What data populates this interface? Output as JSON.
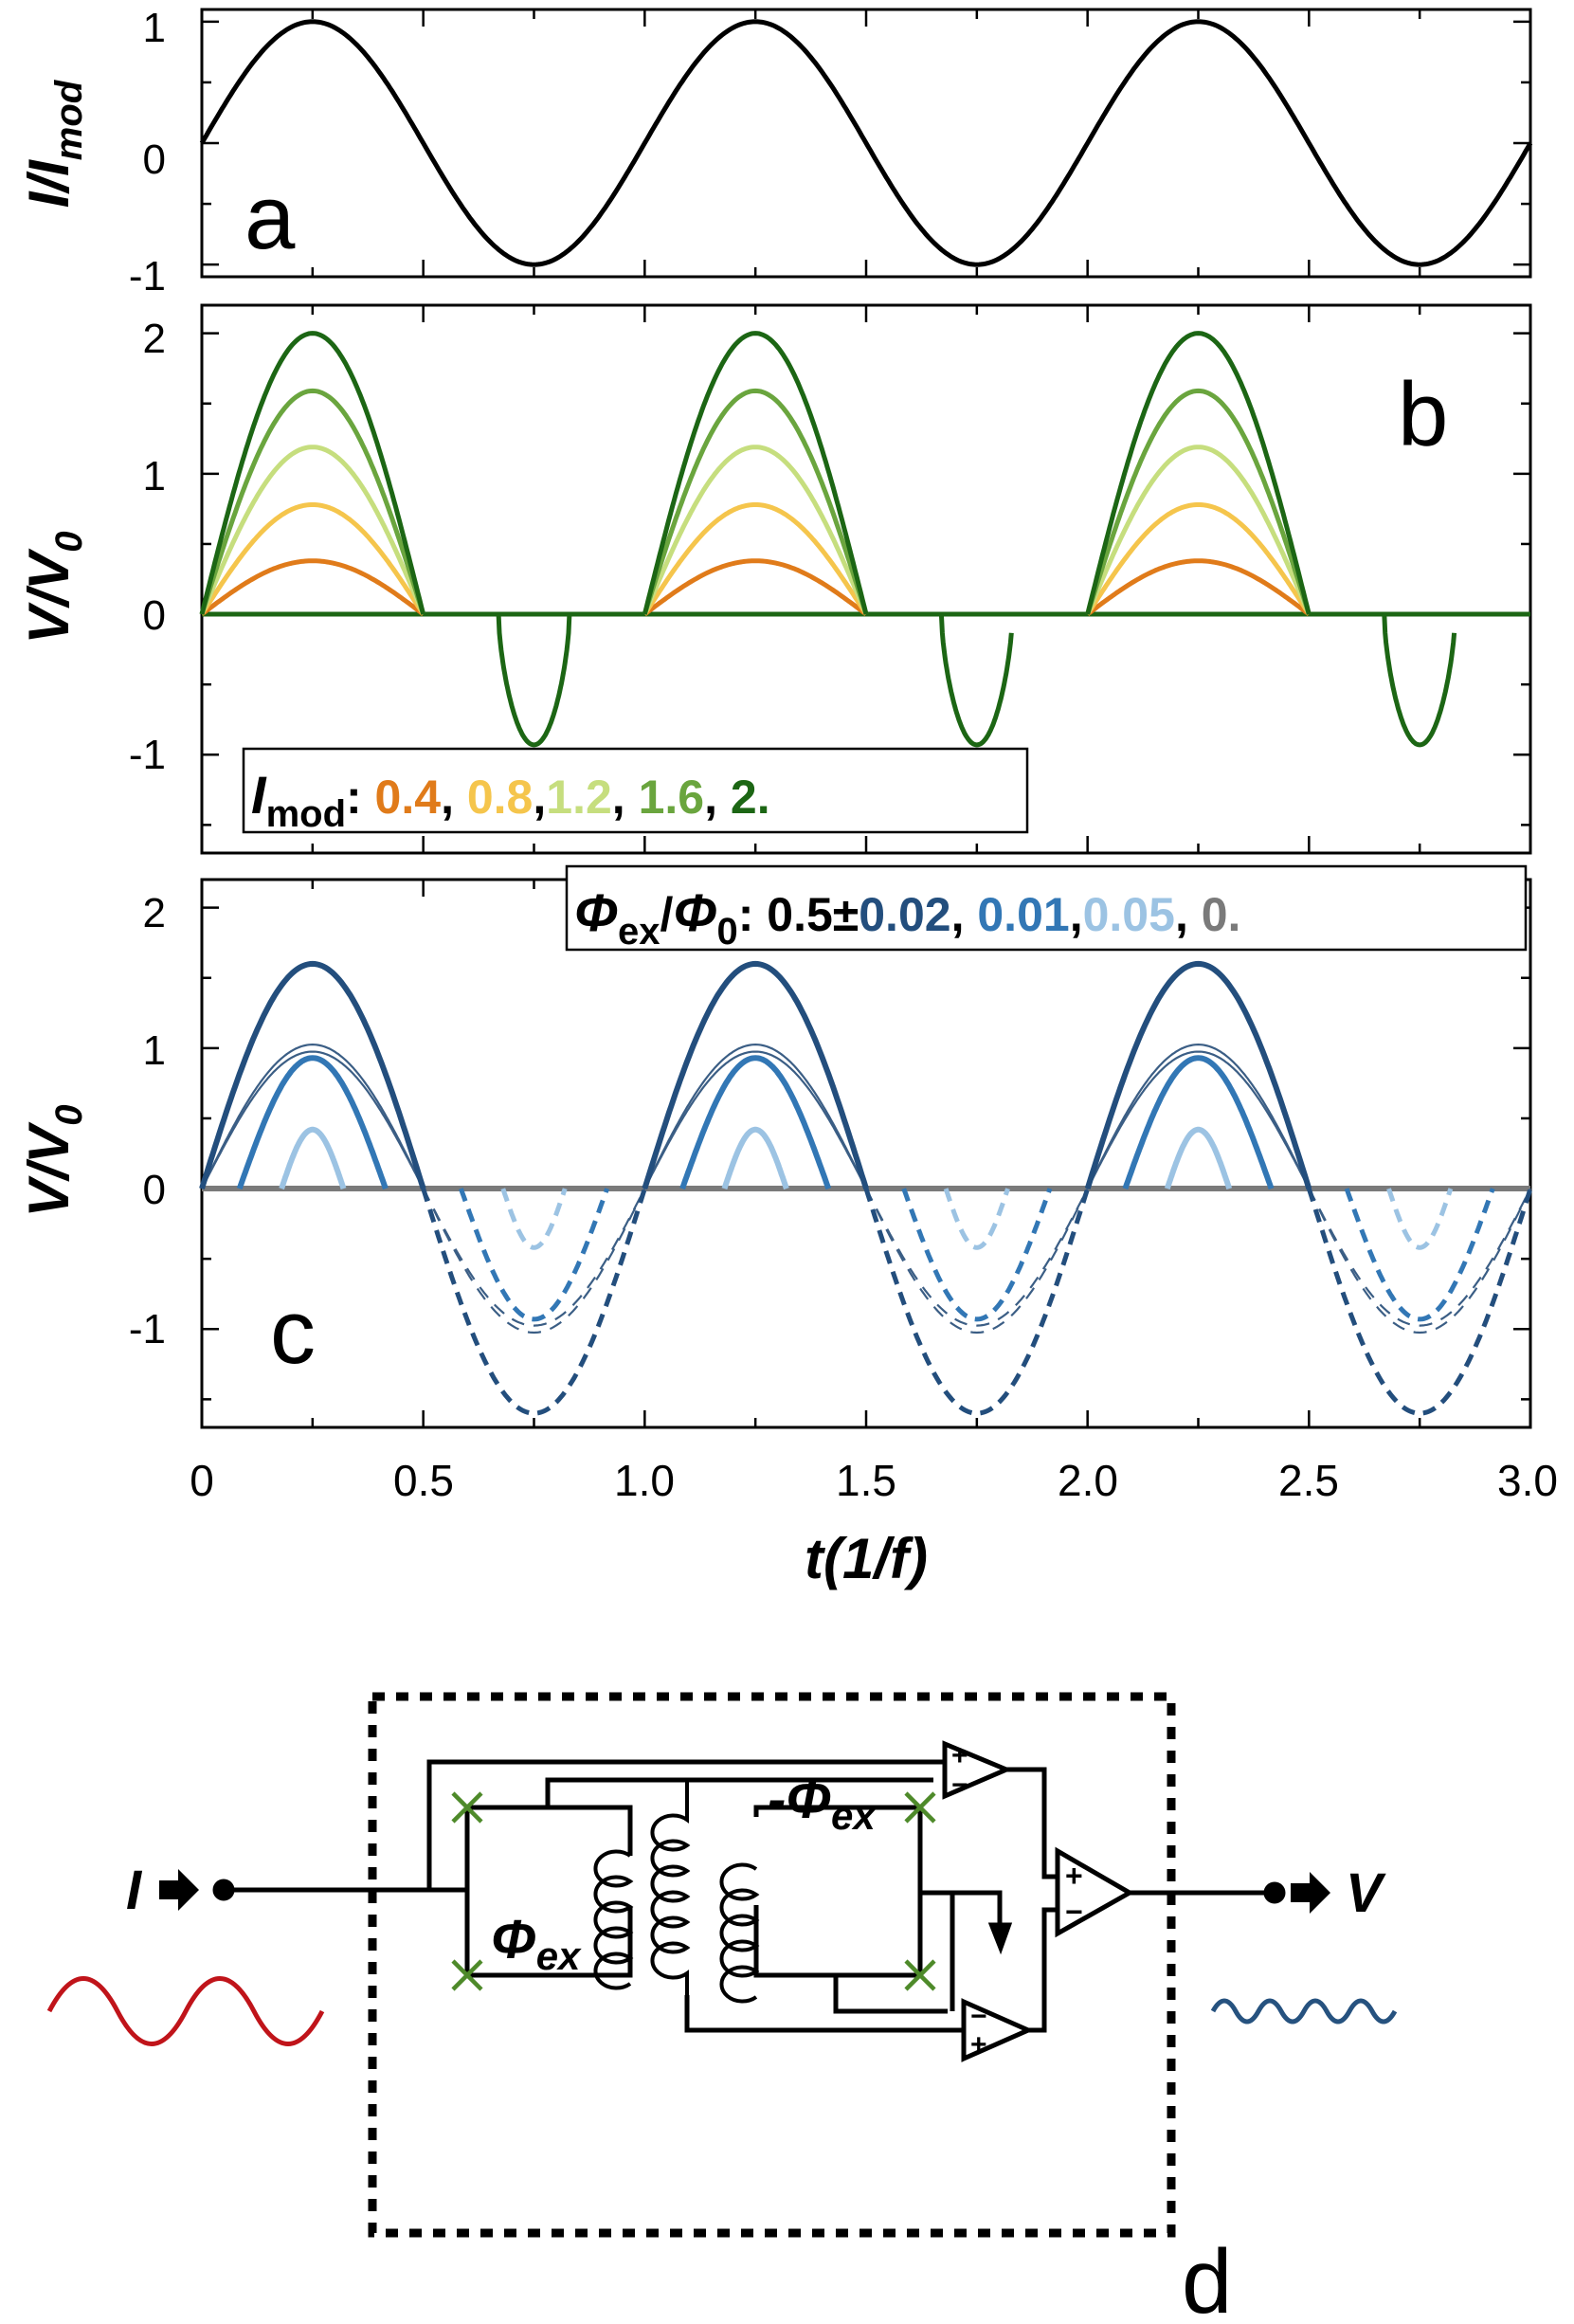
{
  "chart_data": [
    {
      "panel": "a",
      "type": "line",
      "ylabel_main": "I/I",
      "ylabel_sub": "mod",
      "ylim": [
        -1.1,
        1.1
      ],
      "yticks": [
        "1",
        "0",
        "-1"
      ],
      "xlim": [
        0,
        3
      ],
      "series": [
        {
          "name": "I/Imod",
          "formula": "sin(2*pi*t)",
          "color": "#000000"
        }
      ]
    },
    {
      "panel": "b",
      "type": "line",
      "ylabel_main": "V/V",
      "ylabel_sub": "0",
      "ylim": [
        -1.7,
        2.2
      ],
      "yticks": [
        "2",
        "1",
        "0",
        "-1"
      ],
      "xlim": [
        0,
        3
      ],
      "legend": {
        "label_main": "I",
        "label_sub": "mod",
        "colon": ": ",
        "entries": [
          {
            "text": "0.4",
            "sep": ", ",
            "color": "#e07b1a"
          },
          {
            "text": "0.8",
            "sep": ",",
            "color": "#f5c54c"
          },
          {
            "text": "1.2",
            "sep": ", ",
            "color": "#c6de7e"
          },
          {
            "text": "1.6",
            "sep": ", ",
            "color": "#6aa53e"
          },
          {
            "text": "2.",
            "sep": "",
            "color": "#1c6614"
          }
        ]
      },
      "series": [
        {
          "name": "Imod 0.4",
          "peak": 0.38,
          "color": "#e07b1a"
        },
        {
          "name": "Imod 0.8",
          "peak": 0.78,
          "color": "#f5c54c"
        },
        {
          "name": "Imod 1.2",
          "peak": 1.19,
          "color": "#c6de7e"
        },
        {
          "name": "Imod 1.6",
          "peak": 1.59,
          "color": "#6aa53e"
        },
        {
          "name": "Imod 2",
          "peak": 2.0,
          "negative_peak": -0.93,
          "color": "#1c6614"
        }
      ]
    },
    {
      "panel": "c",
      "type": "line",
      "ylabel_main": "V/V",
      "ylabel_sub": "0",
      "ylim": [
        -1.7,
        2.2
      ],
      "yticks": [
        "2",
        "1",
        "0",
        "-1"
      ],
      "xlim": [
        0,
        3
      ],
      "legend": {
        "lead": "0.5±",
        "entries": [
          {
            "text": "0.02",
            "sep": ", ",
            "color": "#234e7d"
          },
          {
            "text": "0.01",
            "sep": ",",
            "color": "#3277b5"
          },
          {
            "text": "0.05",
            "sep": ", ",
            "color": "#9cc3e3"
          },
          {
            "text": "0.",
            "sep": "",
            "color": "#7a7a7a"
          }
        ]
      },
      "series": [
        {
          "name": "0.5±0.02",
          "peak": 1.6,
          "color": "#234e7d"
        },
        {
          "name": "0.5±0.01",
          "peak": 0.93,
          "color": "#3277b5"
        },
        {
          "name": "0.5±0.05",
          "peak": 0.42,
          "color": "#9cc3e3"
        },
        {
          "name": "0.5 (reference)",
          "peak": 1.0,
          "color": "#3b5e85"
        },
        {
          "name": "0.",
          "peak": 0.0,
          "color": "#7a7a7a"
        }
      ]
    }
  ],
  "x_axis": {
    "ticks": [
      "0",
      "0.5",
      "1.0",
      "1.5",
      "2.0",
      "2.5",
      "3.0"
    ],
    "label": "t(1/f)"
  },
  "panel_labels": {
    "a": "a",
    "b": "b",
    "c": "c",
    "d": "d"
  },
  "circuit": {
    "input_label": "I",
    "output_label": "V",
    "phi_ex_label": "Φ",
    "phi_ex_sub": "ex",
    "neg_phi_ex_label": "-Φ",
    "neg_phi_ex_sub": "ex",
    "plus_sign": "+",
    "minus_sign": "−",
    "input_wave_color": "#c0141a",
    "output_wave_color": "#26527f",
    "junction_color": "#4e8a2a"
  },
  "legend_c_symbols": {
    "phi_main": "Φ",
    "phi_sub": "ex",
    "slash": "/",
    "phi0_main": "Φ",
    "phi0_sub": "0",
    "colon": ": "
  }
}
